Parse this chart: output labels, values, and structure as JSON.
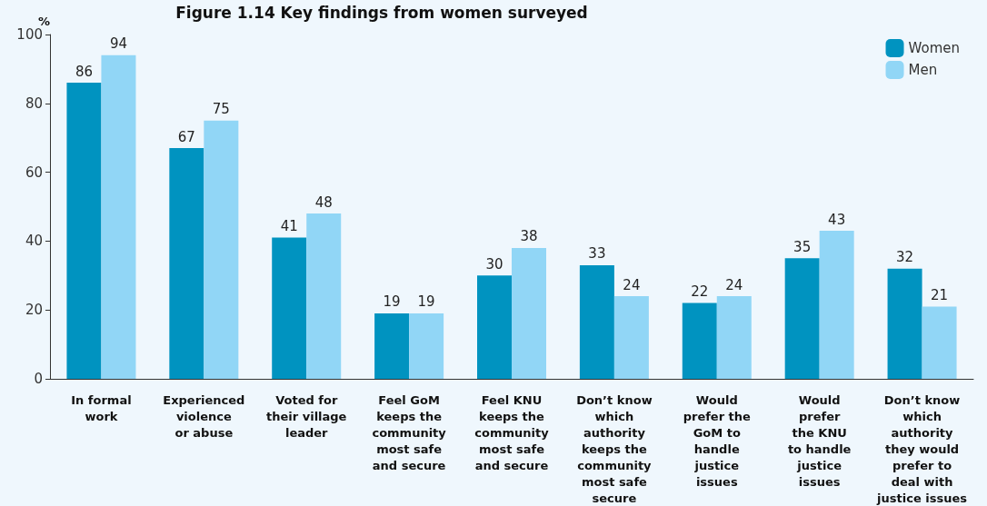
{
  "chart_data": {
    "type": "bar",
    "title": "Figure 1.14 Key findings from women surveyed",
    "ylabel": "%",
    "categories": [
      "In formal\nwork",
      "Experienced\nviolence\nor abuse",
      "Voted for\ntheir village\nleader",
      "Feel GoM\nkeeps the\ncommunity\nmost safe\nand secure",
      "Feel KNU\nkeeps the\ncommunity\nmost safe\nand secure",
      "Don’t know\nwhich\nauthority\nkeeps the\ncommunity\nmost safe\nsecure",
      "Would\nprefer the\nGoM to\nhandle\njustice\nissues",
      "Would\nprefer\nthe KNU\nto handle\njustice\nissues",
      "Don’t know\nwhich\nauthority\nthey would\nprefer to\ndeal with\njustice issues"
    ],
    "series": [
      {
        "name": "Women",
        "color": "#0093c0",
        "values": [
          86,
          67,
          41,
          19,
          30,
          33,
          22,
          35,
          32
        ]
      },
      {
        "name": "Men",
        "color": "#91d6f6",
        "values": [
          94,
          75,
          48,
          19,
          38,
          24,
          24,
          43,
          21
        ]
      }
    ],
    "ylim": [
      0,
      100
    ],
    "yticks": [
      0,
      20,
      40,
      60,
      80,
      100
    ],
    "grid": false,
    "legend": "top right",
    "data_labels": true
  }
}
